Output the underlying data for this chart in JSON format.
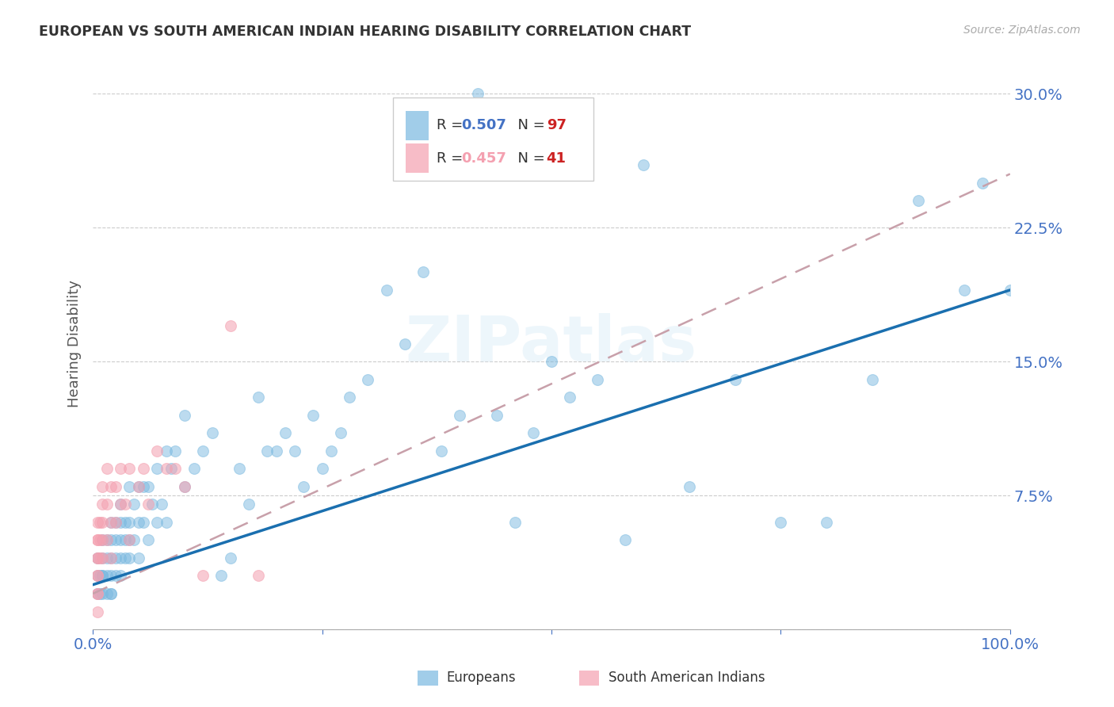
{
  "title": "EUROPEAN VS SOUTH AMERICAN INDIAN HEARING DISABILITY CORRELATION CHART",
  "source": "Source: ZipAtlas.com",
  "ylabel": "Hearing Disability",
  "xlim": [
    0,
    1.0
  ],
  "ylim": [
    0,
    0.32
  ],
  "yticks": [
    0.0,
    0.075,
    0.15,
    0.225,
    0.3
  ],
  "yticklabels": [
    "",
    "7.5%",
    "15.0%",
    "22.5%",
    "30.0%"
  ],
  "background_color": "#ffffff",
  "watermark": "ZIPatlas",
  "blue_color": "#7ab9e0",
  "pink_color": "#f4a0b0",
  "line_blue": "#1a6faf",
  "line_pink": "#c8a0aa",
  "tick_color": "#4472c4",
  "title_color": "#333333",
  "legend_r1": "0.507",
  "legend_n1": "97",
  "legend_r2": "0.457",
  "legend_n2": "41",
  "legend_r_color": "#4472c4",
  "legend_n_color": "#cc2222",
  "europeans_x": [
    0.005,
    0.005,
    0.005,
    0.008,
    0.008,
    0.01,
    0.01,
    0.01,
    0.01,
    0.01,
    0.015,
    0.015,
    0.015,
    0.015,
    0.02,
    0.02,
    0.02,
    0.02,
    0.02,
    0.02,
    0.025,
    0.025,
    0.025,
    0.025,
    0.03,
    0.03,
    0.03,
    0.03,
    0.03,
    0.035,
    0.035,
    0.035,
    0.04,
    0.04,
    0.04,
    0.04,
    0.045,
    0.045,
    0.05,
    0.05,
    0.05,
    0.055,
    0.055,
    0.06,
    0.06,
    0.065,
    0.07,
    0.07,
    0.075,
    0.08,
    0.08,
    0.085,
    0.09,
    0.1,
    0.1,
    0.11,
    0.12,
    0.13,
    0.14,
    0.15,
    0.16,
    0.17,
    0.18,
    0.19,
    0.2,
    0.21,
    0.22,
    0.23,
    0.24,
    0.25,
    0.26,
    0.27,
    0.28,
    0.3,
    0.32,
    0.34,
    0.36,
    0.38,
    0.4,
    0.42,
    0.44,
    0.46,
    0.48,
    0.5,
    0.52,
    0.55,
    0.58,
    0.6,
    0.65,
    0.7,
    0.75,
    0.8,
    0.85,
    0.9,
    0.95,
    0.97,
    1.0
  ],
  "europeans_y": [
    0.02,
    0.03,
    0.04,
    0.02,
    0.03,
    0.02,
    0.03,
    0.03,
    0.04,
    0.05,
    0.02,
    0.03,
    0.04,
    0.05,
    0.02,
    0.02,
    0.03,
    0.04,
    0.05,
    0.06,
    0.03,
    0.04,
    0.05,
    0.06,
    0.03,
    0.04,
    0.05,
    0.06,
    0.07,
    0.04,
    0.05,
    0.06,
    0.04,
    0.05,
    0.06,
    0.08,
    0.05,
    0.07,
    0.04,
    0.06,
    0.08,
    0.06,
    0.08,
    0.05,
    0.08,
    0.07,
    0.06,
    0.09,
    0.07,
    0.06,
    0.1,
    0.09,
    0.1,
    0.08,
    0.12,
    0.09,
    0.1,
    0.11,
    0.03,
    0.04,
    0.09,
    0.07,
    0.13,
    0.1,
    0.1,
    0.11,
    0.1,
    0.08,
    0.12,
    0.09,
    0.1,
    0.11,
    0.13,
    0.14,
    0.19,
    0.16,
    0.2,
    0.1,
    0.12,
    0.3,
    0.12,
    0.06,
    0.11,
    0.15,
    0.13,
    0.14,
    0.05,
    0.26,
    0.08,
    0.14,
    0.06,
    0.06,
    0.14,
    0.24,
    0.19,
    0.25,
    0.19
  ],
  "south_am_x": [
    0.005,
    0.005,
    0.005,
    0.005,
    0.005,
    0.005,
    0.005,
    0.005,
    0.005,
    0.005,
    0.008,
    0.008,
    0.008,
    0.01,
    0.01,
    0.01,
    0.01,
    0.01,
    0.015,
    0.015,
    0.015,
    0.02,
    0.02,
    0.02,
    0.025,
    0.025,
    0.03,
    0.03,
    0.035,
    0.04,
    0.04,
    0.05,
    0.055,
    0.06,
    0.07,
    0.08,
    0.09,
    0.1,
    0.12,
    0.15,
    0.18
  ],
  "south_am_y": [
    0.01,
    0.02,
    0.02,
    0.03,
    0.03,
    0.04,
    0.04,
    0.05,
    0.05,
    0.06,
    0.04,
    0.05,
    0.06,
    0.04,
    0.05,
    0.06,
    0.07,
    0.08,
    0.05,
    0.07,
    0.09,
    0.04,
    0.06,
    0.08,
    0.06,
    0.08,
    0.07,
    0.09,
    0.07,
    0.05,
    0.09,
    0.08,
    0.09,
    0.07,
    0.1,
    0.09,
    0.09,
    0.08,
    0.03,
    0.17,
    0.03
  ],
  "line_blue_x0": 0.0,
  "line_blue_x1": 1.0,
  "line_blue_y0": 0.025,
  "line_blue_y1": 0.19,
  "line_pink_x0": 0.0,
  "line_pink_x1": 1.0,
  "line_pink_y0": 0.02,
  "line_pink_y1": 0.255
}
